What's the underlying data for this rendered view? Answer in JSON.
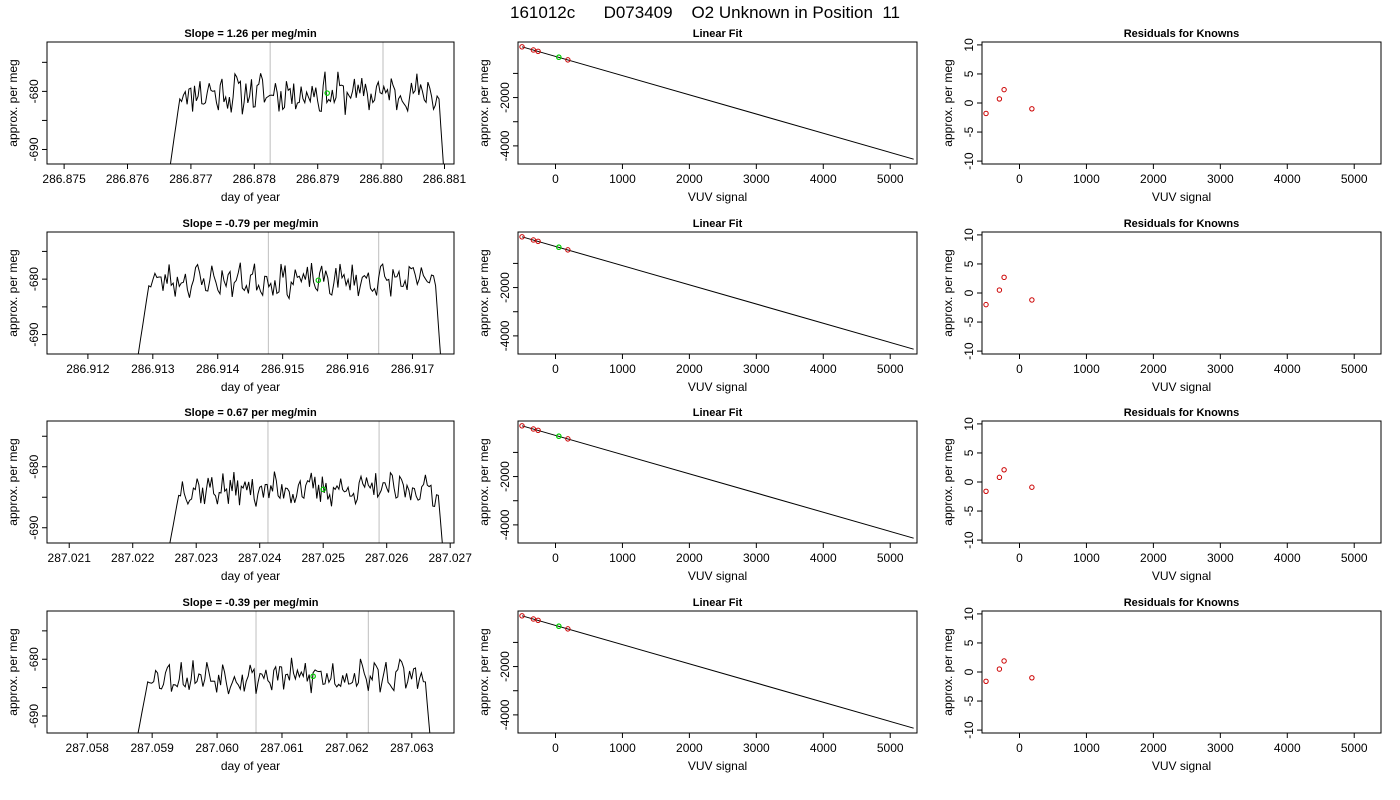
{
  "figure": {
    "title": "161012c      D073409    O2 Unknown in Position  11",
    "background": "#ffffff",
    "colors": {
      "trace": "#000000",
      "knowns": "#cc0000",
      "unknown": "#00cc00",
      "vlines": "#bebebe",
      "fit_line": "#000000"
    }
  },
  "chart_data": [
    {
      "type": "line",
      "panel": "timeseries",
      "row": 0,
      "title": "Slope =  1.26  per meg/min",
      "xlabel": "day of year",
      "ylabel": "approx. per meg",
      "xlim": [
        286.87473,
        286.88115
      ],
      "ylim": [
        -692.5,
        -671.5
      ],
      "xticks": [
        286.875,
        286.876,
        286.877,
        286.878,
        286.879,
        286.88,
        286.881
      ],
      "xtick_labels": [
        "286.875",
        "286.876",
        "286.877",
        "286.878",
        "286.879",
        "286.880",
        "286.881"
      ],
      "yticks": [
        -690,
        -680
      ],
      "ytick_labels": [
        "-690",
        "-680"
      ],
      "extra_yticks": [
        -685,
        -675
      ],
      "trace_start": 286.87665,
      "trace_end": 286.881,
      "vlines": [
        286.87825,
        286.88003
      ],
      "unknown_point": {
        "x": 286.87915,
        "y": -680.3
      },
      "noise_amplitude": 2.8,
      "noise_seed": 11
    },
    {
      "type": "scatter",
      "panel": "fit",
      "row": 0,
      "title": "Linear Fit",
      "xlabel": "VUV signal",
      "ylabel": "approx. per meg",
      "xlim": [
        -560,
        5400
      ],
      "ylim": [
        -4750,
        300
      ],
      "xticks": [
        0,
        1000,
        2000,
        3000,
        4000,
        5000
      ],
      "xtick_labels": [
        "0",
        "1000",
        "2000",
        "3000",
        "4000",
        "5000"
      ],
      "yticks": [
        -4000,
        -2000
      ],
      "ytick_labels": [
        "-4000",
        "-2000"
      ],
      "extra_yticks": [
        -3000,
        -1000
      ],
      "fit_line": {
        "x": [
          -500,
          5350
        ],
        "y": [
          100,
          -4550
        ]
      },
      "knowns": [
        {
          "x": -500,
          "y": 100
        },
        {
          "x": -330,
          "y": -30
        },
        {
          "x": -260,
          "y": -85
        },
        {
          "x": 185,
          "y": -440
        }
      ],
      "unknown": {
        "x": 50,
        "y": -330
      }
    },
    {
      "type": "scatter",
      "panel": "residuals",
      "row": 0,
      "title": "Residuals for Knowns",
      "xlabel": "VUV signal",
      "ylabel": "approx. per meg",
      "xlim": [
        -560,
        5400
      ],
      "ylim": [
        -10.5,
        10.5
      ],
      "xticks": [
        0,
        1000,
        2000,
        3000,
        4000,
        5000
      ],
      "xtick_labels": [
        "0",
        "1000",
        "2000",
        "3000",
        "4000",
        "5000"
      ],
      "yticks": [
        -10,
        -5,
        0,
        5,
        10
      ],
      "ytick_labels": [
        "-10",
        "-5",
        "0",
        "5",
        "10"
      ],
      "points": [
        {
          "x": -500,
          "y": -1.8
        },
        {
          "x": -300,
          "y": 0.7
        },
        {
          "x": -230,
          "y": 2.3
        },
        {
          "x": 185,
          "y": -1.0
        }
      ]
    },
    {
      "type": "line",
      "panel": "timeseries",
      "row": 1,
      "title": "Slope =  -0.79  per meg/min",
      "xlabel": "day of year",
      "ylabel": "approx. per meg",
      "xlim": [
        286.91137,
        286.91764
      ],
      "ylim": [
        -693.5,
        -671.5
      ],
      "xticks": [
        286.912,
        286.913,
        286.914,
        286.915,
        286.916,
        286.917
      ],
      "xtick_labels": [
        "286.912",
        "286.913",
        "286.914",
        "286.915",
        "286.916",
        "286.917"
      ],
      "yticks": [
        -690,
        -680
      ],
      "ytick_labels": [
        "-690",
        "-680"
      ],
      "extra_yticks": [
        -685,
        -675
      ],
      "trace_start": 286.91275,
      "trace_end": 286.91745,
      "vlines": [
        286.91478,
        286.91648
      ],
      "unknown_point": {
        "x": 286.91555,
        "y": -680.2
      },
      "noise_amplitude": 2.4,
      "noise_seed": 23
    },
    {
      "type": "scatter",
      "panel": "fit",
      "row": 1,
      "title": "Linear Fit",
      "xlabel": "VUV signal",
      "ylabel": "approx. per meg",
      "xlim": [
        -560,
        5400
      ],
      "ylim": [
        -4750,
        300
      ],
      "xticks": [
        0,
        1000,
        2000,
        3000,
        4000,
        5000
      ],
      "xtick_labels": [
        "0",
        "1000",
        "2000",
        "3000",
        "4000",
        "5000"
      ],
      "yticks": [
        -4000,
        -2000
      ],
      "ytick_labels": [
        "-4000",
        "-2000"
      ],
      "extra_yticks": [
        -3000,
        -1000
      ],
      "fit_line": {
        "x": [
          -500,
          5350
        ],
        "y": [
          100,
          -4550
        ]
      },
      "knowns": [
        {
          "x": -500,
          "y": 100
        },
        {
          "x": -330,
          "y": -30
        },
        {
          "x": -260,
          "y": -85
        },
        {
          "x": 185,
          "y": -440
        }
      ],
      "unknown": {
        "x": 50,
        "y": -330
      }
    },
    {
      "type": "scatter",
      "panel": "residuals",
      "row": 1,
      "title": "Residuals for Knowns",
      "xlabel": "VUV signal",
      "ylabel": "approx. per meg",
      "xlim": [
        -560,
        5400
      ],
      "ylim": [
        -10.5,
        10.5
      ],
      "xticks": [
        0,
        1000,
        2000,
        3000,
        4000,
        5000
      ],
      "xtick_labels": [
        "0",
        "1000",
        "2000",
        "3000",
        "4000",
        "5000"
      ],
      "yticks": [
        -10,
        -5,
        0,
        5,
        10
      ],
      "ytick_labels": [
        "-10",
        "-5",
        "0",
        "5",
        "10"
      ],
      "points": [
        {
          "x": -500,
          "y": -2.0
        },
        {
          "x": -300,
          "y": 0.5
        },
        {
          "x": -230,
          "y": 2.7
        },
        {
          "x": 185,
          "y": -1.2
        }
      ]
    },
    {
      "type": "line",
      "panel": "timeseries",
      "row": 2,
      "title": "Slope =  0.67  per meg/min",
      "xlabel": "day of year",
      "ylabel": "approx. per meg",
      "xlim": [
        287.02065,
        287.02706
      ],
      "ylim": [
        -692.5,
        -672.5
      ],
      "xticks": [
        287.021,
        287.022,
        287.023,
        287.024,
        287.025,
        287.026,
        287.027
      ],
      "xtick_labels": [
        "287.021",
        "287.022",
        "287.023",
        "287.024",
        "287.025",
        "287.026",
        "287.027"
      ],
      "yticks": [
        -690,
        -680
      ],
      "ytick_labels": [
        "-690",
        "-680"
      ],
      "extra_yticks": [
        -685,
        -675
      ],
      "trace_start": 287.02255,
      "trace_end": 287.0269,
      "vlines": [
        287.02413,
        287.02588
      ],
      "unknown_point": {
        "x": 287.025,
        "y": -683.7
      },
      "noise_amplitude": 2.2,
      "noise_seed": 37
    },
    {
      "type": "scatter",
      "panel": "fit",
      "row": 2,
      "title": "Linear Fit",
      "xlabel": "VUV signal",
      "ylabel": "approx. per meg",
      "xlim": [
        -560,
        5400
      ],
      "ylim": [
        -4750,
        300
      ],
      "xticks": [
        0,
        1000,
        2000,
        3000,
        4000,
        5000
      ],
      "xtick_labels": [
        "0",
        "1000",
        "2000",
        "3000",
        "4000",
        "5000"
      ],
      "yticks": [
        -4000,
        -2000
      ],
      "ytick_labels": [
        "-4000",
        "-2000"
      ],
      "extra_yticks": [
        -3000,
        -1000
      ],
      "fit_line": {
        "x": [
          -500,
          5350
        ],
        "y": [
          100,
          -4550
        ]
      },
      "knowns": [
        {
          "x": -500,
          "y": 100
        },
        {
          "x": -330,
          "y": -30
        },
        {
          "x": -260,
          "y": -85
        },
        {
          "x": 185,
          "y": -440
        }
      ],
      "unknown": {
        "x": 50,
        "y": -330
      }
    },
    {
      "type": "scatter",
      "panel": "residuals",
      "row": 2,
      "title": "Residuals for Knowns",
      "xlabel": "VUV signal",
      "ylabel": "approx. per meg",
      "xlim": [
        -560,
        5400
      ],
      "ylim": [
        -10.5,
        10.5
      ],
      "xticks": [
        0,
        1000,
        2000,
        3000,
        4000,
        5000
      ],
      "xtick_labels": [
        "0",
        "1000",
        "2000",
        "3000",
        "4000",
        "5000"
      ],
      "yticks": [
        -10,
        -5,
        0,
        5,
        10
      ],
      "ytick_labels": [
        "-10",
        "-5",
        "0",
        "5",
        "10"
      ],
      "points": [
        {
          "x": -500,
          "y": -1.6
        },
        {
          "x": -300,
          "y": 0.8
        },
        {
          "x": -230,
          "y": 2.1
        },
        {
          "x": 185,
          "y": -0.9
        }
      ]
    },
    {
      "type": "line",
      "panel": "timeseries",
      "row": 3,
      "title": "Slope =  -0.39  per meg/min",
      "xlabel": "day of year",
      "ylabel": "approx. per meg",
      "xlim": [
        287.05738,
        287.06365
      ],
      "ylim": [
        -693.0,
        -671.5
      ],
      "xticks": [
        287.058,
        287.059,
        287.06,
        287.061,
        287.062,
        287.063
      ],
      "xtick_labels": [
        "287.058",
        "287.059",
        "287.060",
        "287.061",
        "287.062",
        "287.063"
      ],
      "yticks": [
        -690,
        -680
      ],
      "ytick_labels": [
        "-690",
        "-680"
      ],
      "extra_yticks": [
        -685,
        -675
      ],
      "trace_start": 287.05875,
      "trace_end": 287.0633,
      "vlines": [
        287.0606,
        287.06233
      ],
      "unknown_point": {
        "x": 287.06148,
        "y": -683.0
      },
      "noise_amplitude": 2.4,
      "noise_seed": 53
    },
    {
      "type": "scatter",
      "panel": "fit",
      "row": 3,
      "title": "Linear Fit",
      "xlabel": "VUV signal",
      "ylabel": "approx. per meg",
      "xlim": [
        -560,
        5400
      ],
      "ylim": [
        -4750,
        300
      ],
      "xticks": [
        0,
        1000,
        2000,
        3000,
        4000,
        5000
      ],
      "xtick_labels": [
        "0",
        "1000",
        "2000",
        "3000",
        "4000",
        "5000"
      ],
      "yticks": [
        -4000,
        -2000
      ],
      "ytick_labels": [
        "-4000",
        "-2000"
      ],
      "extra_yticks": [
        -3000,
        -1000
      ],
      "fit_line": {
        "x": [
          -500,
          5350
        ],
        "y": [
          100,
          -4550
        ]
      },
      "knowns": [
        {
          "x": -500,
          "y": 100
        },
        {
          "x": -330,
          "y": -30
        },
        {
          "x": -260,
          "y": -85
        },
        {
          "x": 185,
          "y": -440
        }
      ],
      "unknown": {
        "x": 50,
        "y": -330
      }
    },
    {
      "type": "scatter",
      "panel": "residuals",
      "row": 3,
      "title": "Residuals for Knowns",
      "xlabel": "VUV signal",
      "ylabel": "approx. per meg",
      "xlim": [
        -560,
        5400
      ],
      "ylim": [
        -10.5,
        10.5
      ],
      "xticks": [
        0,
        1000,
        2000,
        3000,
        4000,
        5000
      ],
      "xtick_labels": [
        "0",
        "1000",
        "2000",
        "3000",
        "4000",
        "5000"
      ],
      "yticks": [
        -10,
        -5,
        0,
        5,
        10
      ],
      "ytick_labels": [
        "-10",
        "-5",
        "0",
        "5",
        "10"
      ],
      "points": [
        {
          "x": -500,
          "y": -1.6
        },
        {
          "x": -300,
          "y": 0.5
        },
        {
          "x": -230,
          "y": 1.9
        },
        {
          "x": 185,
          "y": -1.0
        }
      ]
    }
  ]
}
